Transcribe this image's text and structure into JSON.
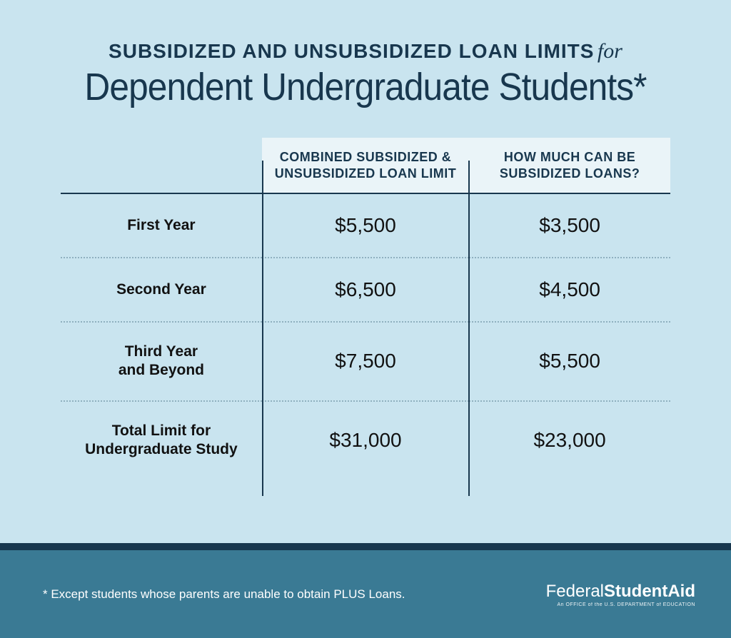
{
  "header": {
    "title_small": "SUBSIDIZED AND UNSUBSIDIZED LOAN LIMITS",
    "title_for": "for",
    "title_large": "Dependent Undergraduate Students*"
  },
  "table": {
    "columns": [
      "COMBINED SUBSIDIZED & UNSUBSIDIZED LOAN LIMIT",
      "HOW MUCH CAN BE SUBSIDIZED LOANS?"
    ],
    "rows": [
      {
        "label": "First Year",
        "combined": "$5,500",
        "subsidized": "$3,500"
      },
      {
        "label": "Second Year",
        "combined": "$6,500",
        "subsidized": "$4,500"
      },
      {
        "label": "Third Year and Beyond",
        "combined": "$7,500",
        "subsidized": "$5,500"
      },
      {
        "label": "Total Limit for Undergraduate Study",
        "combined": "$31,000",
        "subsidized": "$23,000"
      }
    ],
    "header_bg": "#eaf4f8",
    "header_color": "#18374e",
    "body_bg": "#c9e4ef",
    "divider_color": "#18374e",
    "dotted_color": "#8fb0bf"
  },
  "footer": {
    "footnote": "* Except students whose parents are unable to obtain PLUS Loans.",
    "logo_light": "Federal",
    "logo_bold": "StudentAid",
    "logo_sub": "An OFFICE of the U.S. DEPARTMENT of EDUCATION",
    "bg": "#3a7a94",
    "border_top": "#18374e"
  }
}
